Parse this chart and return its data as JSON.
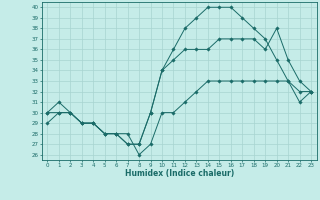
{
  "title": "",
  "xlabel": "Humidex (Indice chaleur)",
  "ylabel": "",
  "background_color": "#c5ece8",
  "grid_color": "#a8d4d0",
  "line_color": "#1a6b68",
  "xlim": [
    -0.5,
    23.5
  ],
  "ylim": [
    25.5,
    40.5
  ],
  "xticks": [
    0,
    1,
    2,
    3,
    4,
    5,
    6,
    7,
    8,
    9,
    10,
    11,
    12,
    13,
    14,
    15,
    16,
    17,
    18,
    19,
    20,
    21,
    22,
    23
  ],
  "yticks": [
    26,
    27,
    28,
    29,
    30,
    31,
    32,
    33,
    34,
    35,
    36,
    37,
    38,
    39,
    40
  ],
  "line1_x": [
    0,
    1,
    2,
    3,
    4,
    5,
    6,
    7,
    8,
    9,
    10,
    11,
    12,
    13,
    14,
    15,
    16,
    17,
    18,
    19,
    20,
    21,
    22,
    23
  ],
  "line1_y": [
    30,
    30,
    30,
    29,
    29,
    28,
    28,
    28,
    26,
    27,
    30,
    30,
    31,
    32,
    33,
    33,
    33,
    33,
    33,
    33,
    33,
    33,
    32,
    32
  ],
  "line2_x": [
    0,
    1,
    2,
    3,
    4,
    5,
    6,
    7,
    8,
    9,
    10,
    11,
    12,
    13,
    14,
    15,
    16,
    17,
    18,
    19,
    20,
    21,
    22,
    23
  ],
  "line2_y": [
    30,
    31,
    30,
    29,
    29,
    28,
    28,
    27,
    27,
    30,
    34,
    36,
    38,
    39,
    40,
    40,
    40,
    39,
    38,
    37,
    35,
    33,
    31,
    32
  ],
  "line3_x": [
    0,
    1,
    2,
    3,
    4,
    5,
    6,
    7,
    8,
    9,
    10,
    11,
    12,
    13,
    14,
    15,
    16,
    17,
    18,
    19,
    20,
    21,
    22,
    23
  ],
  "line3_y": [
    29,
    30,
    30,
    29,
    29,
    28,
    28,
    27,
    27,
    30,
    34,
    35,
    36,
    36,
    36,
    37,
    37,
    37,
    37,
    36,
    38,
    35,
    33,
    32
  ]
}
